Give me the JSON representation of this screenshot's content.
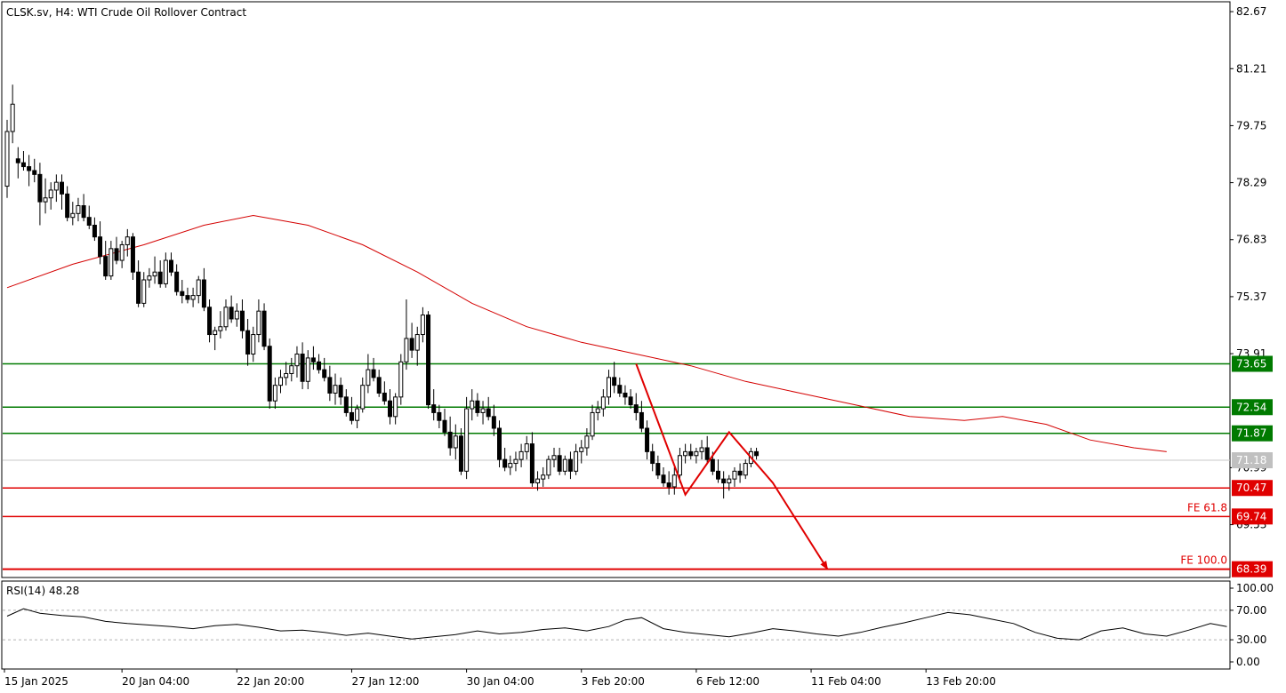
{
  "header": {
    "title": "CLSK.sv, H4:  WTI Crude Oil Rollover Contract",
    "rsi_label": "RSI(14) 48.28"
  },
  "colors": {
    "up_candle": "#ffffff",
    "down_candle": "#000000",
    "ma": "#d40000",
    "resistance": "#007a00",
    "support": "#e00000",
    "current_price": "#c8c8c8",
    "current_price_tag": "#c0c0c0"
  },
  "chart_data": {
    "type": "candlestick",
    "title": "CLSK.sv, H4:  WTI Crude Oil Rollover Contract",
    "ylim": [
      68.2,
      82.9
    ],
    "y_ticks": [
      "82.67",
      "81.21",
      "79.75",
      "78.29",
      "76.83",
      "75.37",
      "73.91",
      "70.99",
      "69.53"
    ],
    "x_ticks": [
      "15 Jan 2025",
      "20 Jan 04:00",
      "22 Jan 20:00",
      "27 Jan 12:00",
      "30 Jan 04:00",
      "3 Feb 20:00",
      "6 Feb 12:00",
      "11 Feb 04:00",
      "13 Feb 20:00"
    ],
    "current_price": "71.18",
    "hlines": [
      {
        "label": "73.65",
        "value": 73.65,
        "kind": "resistance",
        "note": ""
      },
      {
        "label": "72.54",
        "value": 72.54,
        "kind": "resistance",
        "note": ""
      },
      {
        "label": "71.87",
        "value": 71.87,
        "kind": "resistance",
        "note": ""
      },
      {
        "label": "70.47",
        "value": 70.47,
        "kind": "support",
        "note": ""
      },
      {
        "label": "69.74",
        "value": 69.74,
        "kind": "support",
        "note": "FE 61.8"
      },
      {
        "label": "68.39",
        "value": 68.39,
        "kind": "support",
        "note": "FE 100.0"
      }
    ],
    "ohlc": [
      [
        78.2,
        79.9,
        77.9,
        79.6
      ],
      [
        79.6,
        80.8,
        79.3,
        80.3
      ],
      [
        78.9,
        79.2,
        78.4,
        78.8
      ],
      [
        78.8,
        79.1,
        78.6,
        78.7
      ],
      [
        78.7,
        79.0,
        78.2,
        78.6
      ],
      [
        78.6,
        78.9,
        78.3,
        78.5
      ],
      [
        78.5,
        78.8,
        77.2,
        77.8
      ],
      [
        77.8,
        78.4,
        77.5,
        77.9
      ],
      [
        77.9,
        78.3,
        77.6,
        78.1
      ],
      [
        78.1,
        78.5,
        77.8,
        78.3
      ],
      [
        78.3,
        78.5,
        77.6,
        78.0
      ],
      [
        78.0,
        78.2,
        77.3,
        77.4
      ],
      [
        77.4,
        77.8,
        77.2,
        77.5
      ],
      [
        77.5,
        77.9,
        77.3,
        77.7
      ],
      [
        77.7,
        78.0,
        77.3,
        77.4
      ],
      [
        77.4,
        77.7,
        77.1,
        77.2
      ],
      [
        77.2,
        77.4,
        76.8,
        76.9
      ],
      [
        76.9,
        77.3,
        76.2,
        76.4
      ],
      [
        76.4,
        76.8,
        75.8,
        75.9
      ],
      [
        75.9,
        76.8,
        75.8,
        76.6
      ],
      [
        76.6,
        76.9,
        76.2,
        76.3
      ],
      [
        76.3,
        76.8,
        76.1,
        76.7
      ],
      [
        76.7,
        77.1,
        76.4,
        76.9
      ],
      [
        76.9,
        77.0,
        75.8,
        76.0
      ],
      [
        76.0,
        76.3,
        75.1,
        75.2
      ],
      [
        75.2,
        76.0,
        75.1,
        75.8
      ],
      [
        75.8,
        76.1,
        75.6,
        75.9
      ],
      [
        75.9,
        76.4,
        75.7,
        76.0
      ],
      [
        76.0,
        76.3,
        75.6,
        75.7
      ],
      [
        75.7,
        76.5,
        75.6,
        76.3
      ],
      [
        76.3,
        76.5,
        75.9,
        76.0
      ],
      [
        76.0,
        76.2,
        75.4,
        75.5
      ],
      [
        75.5,
        75.8,
        75.2,
        75.4
      ],
      [
        75.4,
        75.6,
        75.2,
        75.3
      ],
      [
        75.3,
        75.6,
        75.1,
        75.4
      ],
      [
        75.4,
        75.9,
        75.2,
        75.8
      ],
      [
        75.8,
        76.1,
        75.0,
        75.1
      ],
      [
        75.1,
        75.3,
        74.2,
        74.4
      ],
      [
        74.4,
        74.6,
        74.0,
        74.5
      ],
      [
        74.5,
        75.0,
        74.3,
        74.6
      ],
      [
        74.6,
        75.3,
        74.5,
        75.1
      ],
      [
        75.1,
        75.4,
        74.7,
        74.8
      ],
      [
        74.8,
        75.2,
        74.6,
        75.0
      ],
      [
        75.0,
        75.3,
        74.3,
        74.5
      ],
      [
        74.5,
        74.8,
        73.6,
        73.9
      ],
      [
        73.9,
        74.6,
        73.7,
        74.4
      ],
      [
        74.4,
        75.3,
        74.2,
        75.0
      ],
      [
        75.0,
        75.2,
        74.0,
        74.1
      ],
      [
        74.1,
        74.3,
        72.5,
        72.7
      ],
      [
        72.7,
        73.3,
        72.5,
        73.1
      ],
      [
        73.1,
        73.5,
        72.9,
        73.3
      ],
      [
        73.3,
        73.7,
        73.1,
        73.4
      ],
      [
        73.4,
        73.8,
        73.2,
        73.6
      ],
      [
        73.6,
        74.1,
        73.3,
        73.9
      ],
      [
        73.9,
        74.2,
        73.0,
        73.2
      ],
      [
        73.2,
        74.0,
        73.0,
        73.8
      ],
      [
        73.8,
        74.1,
        73.5,
        73.7
      ],
      [
        73.7,
        73.9,
        73.4,
        73.5
      ],
      [
        73.5,
        73.8,
        73.2,
        73.3
      ],
      [
        73.3,
        73.6,
        72.7,
        72.9
      ],
      [
        72.9,
        73.4,
        72.6,
        73.1
      ],
      [
        73.1,
        73.3,
        72.6,
        72.8
      ],
      [
        72.8,
        73.0,
        72.3,
        72.4
      ],
      [
        72.4,
        72.8,
        72.1,
        72.2
      ],
      [
        72.2,
        72.6,
        72.0,
        72.5
      ],
      [
        72.5,
        73.3,
        72.4,
        73.1
      ],
      [
        73.1,
        73.9,
        72.9,
        73.5
      ],
      [
        73.5,
        73.8,
        73.2,
        73.3
      ],
      [
        73.3,
        73.5,
        72.8,
        72.9
      ],
      [
        72.9,
        73.2,
        72.6,
        72.7
      ],
      [
        72.7,
        73.0,
        72.1,
        72.3
      ],
      [
        72.3,
        72.9,
        72.1,
        72.8
      ],
      [
        72.8,
        73.9,
        72.6,
        73.7
      ],
      [
        73.7,
        75.3,
        73.5,
        74.3
      ],
      [
        74.3,
        74.7,
        73.8,
        74.0
      ],
      [
        74.0,
        74.6,
        73.6,
        74.4
      ],
      [
        74.4,
        75.1,
        74.2,
        74.9
      ],
      [
        74.9,
        75.0,
        72.5,
        72.6
      ],
      [
        72.6,
        73.0,
        72.2,
        72.4
      ],
      [
        72.4,
        72.6,
        72.0,
        72.2
      ],
      [
        72.2,
        72.5,
        71.8,
        71.9
      ],
      [
        71.9,
        72.3,
        71.3,
        71.5
      ],
      [
        71.5,
        72.1,
        71.2,
        71.8
      ],
      [
        71.8,
        72.0,
        70.8,
        70.9
      ],
      [
        70.9,
        72.8,
        70.7,
        72.5
      ],
      [
        72.5,
        73.0,
        72.2,
        72.7
      ],
      [
        72.7,
        72.9,
        72.3,
        72.4
      ],
      [
        72.4,
        72.7,
        72.1,
        72.5
      ],
      [
        72.5,
        72.8,
        72.2,
        72.3
      ],
      [
        72.3,
        72.6,
        71.8,
        72.0
      ],
      [
        72.0,
        72.2,
        71.0,
        71.2
      ],
      [
        71.2,
        71.5,
        70.9,
        71.0
      ],
      [
        71.0,
        71.3,
        70.8,
        71.1
      ],
      [
        71.1,
        71.4,
        70.9,
        71.2
      ],
      [
        71.2,
        71.6,
        71.0,
        71.4
      ],
      [
        71.4,
        71.8,
        71.2,
        71.6
      ],
      [
        71.6,
        71.9,
        70.5,
        70.6
      ],
      [
        70.6,
        70.9,
        70.4,
        70.7
      ],
      [
        70.7,
        71.0,
        70.5,
        70.8
      ],
      [
        70.8,
        71.3,
        70.7,
        71.2
      ],
      [
        71.2,
        71.5,
        71.0,
        71.3
      ],
      [
        71.3,
        71.5,
        70.8,
        70.9
      ],
      [
        70.9,
        71.3,
        70.8,
        71.2
      ],
      [
        71.2,
        71.4,
        70.7,
        70.9
      ],
      [
        70.9,
        71.6,
        70.8,
        71.4
      ],
      [
        71.4,
        71.7,
        71.1,
        71.5
      ],
      [
        71.5,
        72.0,
        71.3,
        71.8
      ],
      [
        71.8,
        72.6,
        71.7,
        72.4
      ],
      [
        72.4,
        72.7,
        72.2,
        72.5
      ],
      [
        72.5,
        73.0,
        72.3,
        72.8
      ],
      [
        72.8,
        73.5,
        72.6,
        73.3
      ],
      [
        73.3,
        73.7,
        72.9,
        73.1
      ],
      [
        73.1,
        73.3,
        72.8,
        72.9
      ],
      [
        72.9,
        73.1,
        72.6,
        72.8
      ],
      [
        72.8,
        73.0,
        72.5,
        72.6
      ],
      [
        72.6,
        72.9,
        72.2,
        72.4
      ],
      [
        72.4,
        72.7,
        71.9,
        72.0
      ],
      [
        72.0,
        72.2,
        71.2,
        71.4
      ],
      [
        71.4,
        71.6,
        70.9,
        71.1
      ],
      [
        71.1,
        71.3,
        70.7,
        70.8
      ],
      [
        70.8,
        71.0,
        70.5,
        70.6
      ],
      [
        70.6,
        70.9,
        70.3,
        70.5
      ],
      [
        70.5,
        71.0,
        70.3,
        70.8
      ],
      [
        70.8,
        71.5,
        70.6,
        71.3
      ],
      [
        71.3,
        71.6,
        71.1,
        71.4
      ],
      [
        71.4,
        71.6,
        71.2,
        71.3
      ],
      [
        71.3,
        71.5,
        71.1,
        71.4
      ],
      [
        71.4,
        71.7,
        71.2,
        71.5
      ],
      [
        71.5,
        71.8,
        71.1,
        71.2
      ],
      [
        71.2,
        71.4,
        70.8,
        70.9
      ],
      [
        70.9,
        71.2,
        70.6,
        70.7
      ],
      [
        70.7,
        70.9,
        70.2,
        70.6
      ],
      [
        70.6,
        70.8,
        70.4,
        70.7
      ],
      [
        70.7,
        71.0,
        70.5,
        70.9
      ],
      [
        70.9,
        71.1,
        70.6,
        70.8
      ],
      [
        70.8,
        71.2,
        70.7,
        71.1
      ],
      [
        71.1,
        71.5,
        71.0,
        71.4
      ],
      [
        71.4,
        71.5,
        71.2,
        71.3
      ]
    ],
    "ma_points": [
      [
        0,
        75.6
      ],
      [
        12,
        76.2
      ],
      [
        25,
        76.7
      ],
      [
        36,
        77.2
      ],
      [
        45,
        77.45
      ],
      [
        55,
        77.2
      ],
      [
        65,
        76.7
      ],
      [
        75,
        76.0
      ],
      [
        85,
        75.2
      ],
      [
        95,
        74.6
      ],
      [
        105,
        74.2
      ],
      [
        115,
        73.9
      ],
      [
        125,
        73.6
      ],
      [
        135,
        73.2
      ],
      [
        145,
        72.9
      ],
      [
        155,
        72.6
      ],
      [
        165,
        72.3
      ],
      [
        175,
        72.2
      ],
      [
        182,
        72.3
      ],
      [
        190,
        72.1
      ],
      [
        198,
        71.7
      ],
      [
        206,
        71.5
      ],
      [
        212,
        71.4
      ]
    ],
    "rsi": {
      "label": "RSI(14) 48.28",
      "value": 48.28,
      "ylim": [
        0,
        100
      ],
      "y_ticks": [
        "100.00",
        "70.00",
        "30.00",
        "0.00"
      ],
      "levels": [
        70,
        30
      ],
      "points": [
        [
          0,
          62
        ],
        [
          3,
          72
        ],
        [
          6,
          66
        ],
        [
          10,
          63
        ],
        [
          14,
          61
        ],
        [
          18,
          55
        ],
        [
          22,
          52
        ],
        [
          26,
          50
        ],
        [
          30,
          48
        ],
        [
          34,
          45
        ],
        [
          38,
          49
        ],
        [
          42,
          51
        ],
        [
          46,
          47
        ],
        [
          50,
          42
        ],
        [
          54,
          43
        ],
        [
          58,
          40
        ],
        [
          62,
          36
        ],
        [
          66,
          39
        ],
        [
          70,
          35
        ],
        [
          74,
          31
        ],
        [
          78,
          34
        ],
        [
          82,
          37
        ],
        [
          86,
          42
        ],
        [
          90,
          38
        ],
        [
          94,
          40
        ],
        [
          98,
          44
        ],
        [
          102,
          46
        ],
        [
          106,
          42
        ],
        [
          110,
          48
        ],
        [
          113,
          57
        ],
        [
          116,
          60
        ],
        [
          120,
          45
        ],
        [
          124,
          40
        ],
        [
          128,
          37
        ],
        [
          132,
          34
        ],
        [
          136,
          39
        ],
        [
          140,
          45
        ],
        [
          144,
          42
        ],
        [
          148,
          38
        ],
        [
          152,
          35
        ],
        [
          156,
          40
        ],
        [
          160,
          47
        ],
        [
          164,
          53
        ],
        [
          168,
          60
        ],
        [
          172,
          67
        ],
        [
          176,
          64
        ],
        [
          180,
          58
        ],
        [
          184,
          52
        ],
        [
          188,
          40
        ],
        [
          192,
          32
        ],
        [
          196,
          30
        ],
        [
          200,
          42
        ],
        [
          204,
          46
        ],
        [
          208,
          38
        ],
        [
          212,
          35
        ],
        [
          216,
          43
        ],
        [
          220,
          52
        ],
        [
          223,
          48
        ]
      ]
    },
    "annotations": [
      {
        "type": "polyline",
        "points": [
          [
            115,
            73.65
          ],
          [
            124,
            70.3
          ],
          [
            132,
            71.9
          ],
          [
            140,
            70.6
          ],
          [
            150,
            68.39
          ]
        ],
        "color": "#e00000",
        "arrow": true
      }
    ]
  }
}
